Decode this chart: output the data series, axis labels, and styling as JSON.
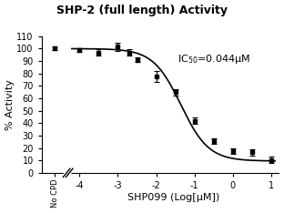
{
  "title": "SHP-2 (full length) Activity",
  "xlabel": "SHP099 (Log[μM])",
  "ylabel": "% Activity",
  "ic50_value": "=0.044μM",
  "ylim": [
    0,
    110
  ],
  "yticks": [
    0,
    10,
    20,
    30,
    40,
    50,
    60,
    70,
    80,
    90,
    100,
    110
  ],
  "xticks": [
    -4,
    -3,
    -2,
    -1,
    0,
    1
  ],
  "no_cpd_y": 100.5,
  "no_cpd_err": 1.5,
  "data_x": [
    -4.0,
    -3.5,
    -3.0,
    -2.7,
    -2.5,
    -2.0,
    -1.5,
    -1.0,
    -0.5,
    0.0,
    0.5,
    1.0
  ],
  "data_y": [
    99.0,
    97.0,
    101.5,
    97.0,
    91.0,
    77.5,
    65.0,
    42.0,
    25.5,
    17.5,
    16.5,
    10.5
  ],
  "data_err": [
    1.5,
    2.5,
    3.5,
    2.5,
    2.0,
    4.5,
    2.5,
    2.5,
    2.0,
    2.0,
    2.5,
    2.5
  ],
  "line_color": "#000000",
  "marker_color": "#000000",
  "background_color": "#ffffff",
  "top_val": 100.0,
  "bottom_val": 9.5,
  "ic50_log": -1.357,
  "hill": 1.2
}
